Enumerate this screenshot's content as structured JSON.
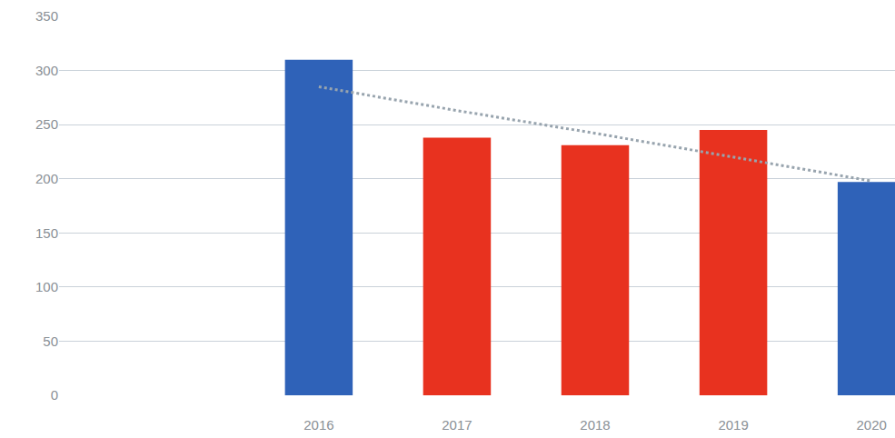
{
  "chart_data": {
    "type": "bar",
    "categories": [
      "2016",
      "2017",
      "2018",
      "2019",
      "2020"
    ],
    "series": [
      {
        "type": "bar",
        "colors": [
          "#2f62b8",
          "#e8321f",
          "#e8321f",
          "#e8321f",
          "#2f62b8"
        ],
        "values": [
          310,
          238,
          231,
          245,
          197
        ]
      },
      {
        "type": "line",
        "line_style": "dotted",
        "color": "#98a4ae",
        "values": [
          285,
          263,
          242,
          220,
          198
        ]
      }
    ],
    "ylim": [
      0,
      350
    ],
    "yticks": [
      0,
      50,
      100,
      150,
      200,
      250,
      300,
      350
    ],
    "grid": true
  }
}
